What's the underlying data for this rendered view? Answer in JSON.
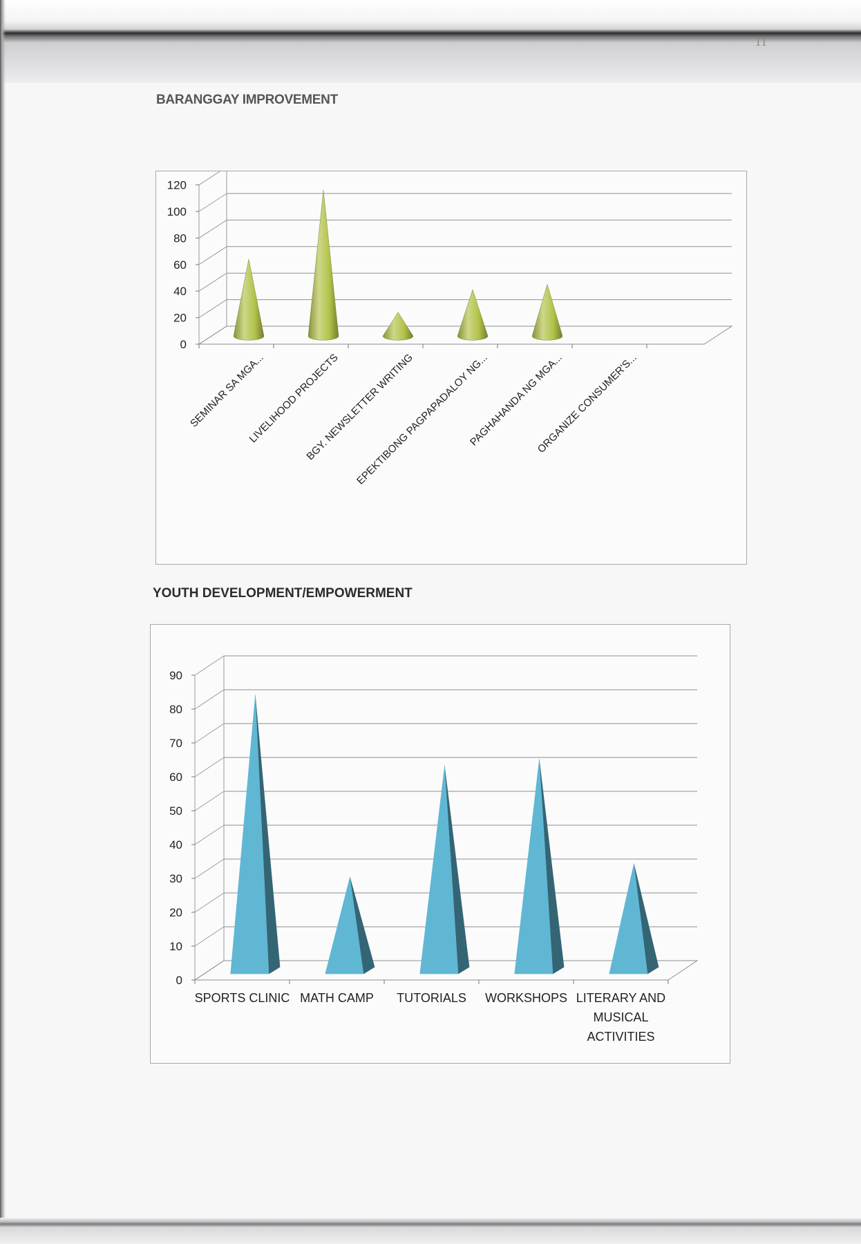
{
  "page": {
    "number": "11"
  },
  "sections": [
    {
      "title": "BARANGGAY IMPROVEMENT"
    },
    {
      "title": "YOUTH DEVELOPMENT/EMPOWERMENT"
    }
  ],
  "chart_data": [
    {
      "type": "bar",
      "shape": "3d-cone",
      "title": "",
      "categories": [
        "SEMINAR SA MGA...",
        "LIVELIHOOD PROJECTS",
        "BGY. NEWSLETTER WRITING",
        "EPEKTIBONG PAGPAPADALOY NG...",
        "PAGHAHANDA NG MGA...",
        "ORGANIZE CONSUMER'S..."
      ],
      "values": [
        58,
        110,
        18,
        35,
        39,
        0
      ],
      "yticks": [
        0,
        20,
        40,
        60,
        80,
        100,
        120
      ],
      "ylim": [
        0,
        120
      ],
      "grid": true,
      "color": "#b3c24a",
      "xlabel": "",
      "ylabel": ""
    },
    {
      "type": "bar",
      "shape": "3d-pyramid",
      "title": "",
      "categories": [
        "SPORTS CLINIC",
        "MATH CAMP",
        "TUTORIALS",
        "WORKSHOPS",
        "LITERARY AND MUSICAL ACTIVITIES"
      ],
      "category_lines": [
        [
          "SPORTS CLINIC"
        ],
        [
          "MATH CAMP"
        ],
        [
          "TUTORIALS"
        ],
        [
          "WORKSHOPS"
        ],
        [
          "LITERARY AND",
          "MUSICAL",
          "ACTIVITIES"
        ]
      ],
      "values": [
        82,
        28,
        61,
        63,
        32
      ],
      "yticks": [
        0,
        10,
        20,
        30,
        40,
        50,
        60,
        70,
        80,
        90
      ],
      "ylim": [
        0,
        90
      ],
      "grid": true,
      "color": "#5fb7d4",
      "xlabel": "",
      "ylabel": ""
    }
  ]
}
